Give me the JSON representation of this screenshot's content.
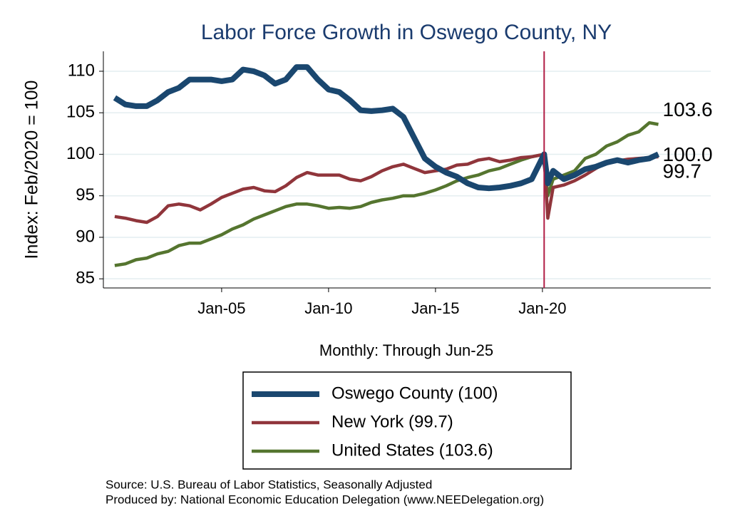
{
  "chart_data": {
    "type": "line",
    "title": "Labor Force Growth in Oswego  County, NY",
    "y_label": "Index: Feb/2020 = 100",
    "x_label": "Monthly: Through Jun-25",
    "notes": [
      "Source: U.S. Bureau of Labor Statistics, Seasonally Adjusted",
      "Produced by: National Economic Education Delegation (www.NEEDelegation.org)"
    ],
    "xlim": [
      1999.47,
      2027.87
    ],
    "ylim": [
      83.9,
      112.4
    ],
    "xticks": [
      {
        "value": 2005,
        "label": "Jan-05"
      },
      {
        "value": 2010,
        "label": "Jan-10"
      },
      {
        "value": 2015,
        "label": "Jan-15"
      },
      {
        "value": 2020,
        "label": "Jan-20"
      }
    ],
    "yticks": [
      85,
      90,
      95,
      100,
      105,
      110
    ],
    "grid": true,
    "vline": {
      "value": 2020.08,
      "color": "#b01c44"
    },
    "x": [
      2000,
      2000.5,
      2001,
      2001.5,
      2002,
      2002.5,
      2003,
      2003.5,
      2004,
      2004.5,
      2005,
      2005.5,
      2006,
      2006.5,
      2007,
      2007.5,
      2008,
      2008.5,
      2009,
      2009.5,
      2010,
      2010.5,
      2011,
      2011.5,
      2012,
      2012.5,
      2013,
      2013.5,
      2014,
      2014.5,
      2015,
      2015.5,
      2016,
      2016.5,
      2017,
      2017.5,
      2018,
      2018.5,
      2019,
      2019.5,
      2020.08,
      2020.25,
      2020.5,
      2021,
      2021.5,
      2022,
      2022.5,
      2023,
      2023.5,
      2024,
      2024.5,
      2025,
      2025.42
    ],
    "series": [
      {
        "name": "Oswego  County (100)",
        "color": "#1a476f",
        "end_label": "100.0",
        "values": [
          106.8,
          106,
          105.8,
          105.8,
          106.5,
          107.5,
          108,
          109,
          109,
          109,
          108.8,
          109,
          110.2,
          110,
          109.5,
          108.5,
          109,
          110.5,
          110.5,
          109,
          107.8,
          107.5,
          106.5,
          105.3,
          105.2,
          105.3,
          105.5,
          104.5,
          102,
          99.5,
          98.5,
          97.8,
          97.3,
          96.5,
          96,
          95.9,
          96,
          96.2,
          96.5,
          97,
          100,
          96.5,
          98,
          97,
          97.5,
          98.2,
          98.5,
          99,
          99.3,
          99,
          99.3,
          99.5,
          100
        ]
      },
      {
        "name": "New York (99.7)",
        "color": "#90353b",
        "end_label": "99.7",
        "values": [
          92.5,
          92.3,
          92,
          91.8,
          92.5,
          93.8,
          94,
          93.8,
          93.3,
          94,
          94.8,
          95.3,
          95.8,
          96,
          95.6,
          95.5,
          96.2,
          97.2,
          97.8,
          97.5,
          97.5,
          97.5,
          97,
          96.8,
          97.3,
          98,
          98.5,
          98.8,
          98.3,
          97.8,
          98,
          98.2,
          98.7,
          98.8,
          99.3,
          99.5,
          99.1,
          99.3,
          99.6,
          99.7,
          100,
          92.3,
          96,
          96.3,
          96.8,
          97.5,
          98.3,
          99,
          99.2,
          99.4,
          99.5,
          99.6,
          99.7
        ]
      },
      {
        "name": "United States (103.6)",
        "color": "#55752f",
        "end_label": "103.6",
        "values": [
          86.6,
          86.8,
          87.3,
          87.5,
          88,
          88.3,
          89,
          89.3,
          89.3,
          89.8,
          90.3,
          91,
          91.5,
          92.2,
          92.7,
          93.2,
          93.7,
          94,
          94,
          93.8,
          93.5,
          93.6,
          93.5,
          93.7,
          94.2,
          94.5,
          94.7,
          95,
          95,
          95.3,
          95.7,
          96.2,
          96.8,
          97.2,
          97.5,
          98,
          98.3,
          98.8,
          99.3,
          99.7,
          100,
          95,
          97,
          97.5,
          98,
          99.5,
          100,
          101,
          101.5,
          102.3,
          102.7,
          103.8,
          103.6
        ]
      }
    ]
  }
}
